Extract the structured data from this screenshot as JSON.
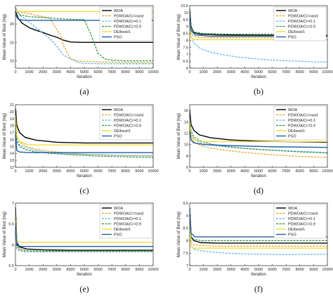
{
  "legend_entries": [
    "WOA",
    "PDWOA/Cr=rand",
    "PDWOA/Cr=0.1",
    "PDWOA/Cr=0.9",
    "DE/best/1",
    "PSO"
  ],
  "series_colors": [
    "#000000",
    "#e6a01e",
    "#5ab4e6",
    "#2e8b3c",
    "#f0dc3c",
    "#1f5fa8"
  ],
  "series_dash": [
    "solid",
    "dash",
    "dash",
    "dash",
    "solid",
    "solid"
  ],
  "chart_data": [
    {
      "type": "line",
      "caption": "(a)",
      "xlabel": "Iteration",
      "ylabel": "Mean Value of Best (log)",
      "xlim": [
        0,
        10000
      ],
      "ylim": [
        8,
        25
      ],
      "xticks": [
        0,
        1000,
        2000,
        3000,
        4000,
        5000,
        6000,
        7000,
        8000,
        9000,
        10000
      ],
      "yticks": [
        10,
        15,
        20
      ],
      "legend": "top-right",
      "grid": false,
      "series": [
        {
          "name": "WOA",
          "x": [
            0,
            200,
            500,
            1000,
            1500,
            2000,
            2500,
            3000,
            3500,
            4000,
            5000,
            6000,
            8000,
            10000
          ],
          "y": [
            23.5,
            21.5,
            20.2,
            19.0,
            18.3,
            17.7,
            17.0,
            16.4,
            15.6,
            15.1,
            15.0,
            15.0,
            15.0,
            15.0
          ]
        },
        {
          "name": "PDWOA/Cr=rand",
          "x": [
            0,
            300,
            1000,
            2000,
            2500,
            3000,
            3300,
            3500,
            3800,
            4000,
            4500,
            5000,
            6000,
            8000,
            10000
          ],
          "y": [
            24.0,
            23.3,
            22.8,
            22.0,
            21.5,
            18.5,
            17.0,
            14.0,
            12.0,
            10.5,
            10.0,
            9.8,
            9.7,
            9.6,
            9.5
          ]
        },
        {
          "name": "PDWOA/Cr=0.1",
          "x": [
            0,
            300,
            1000,
            1500,
            2000,
            2500,
            3000,
            3500,
            4000,
            4200,
            4500,
            5000,
            6000,
            8000,
            10000
          ],
          "y": [
            24.5,
            22.5,
            20.5,
            19.0,
            17.5,
            16.0,
            14.0,
            11.5,
            10.5,
            10.2,
            9.6,
            9.3,
            9.2,
            9.2,
            9.2
          ]
        },
        {
          "name": "PDWOA/Cr=0.9",
          "x": [
            0,
            300,
            1000,
            2000,
            3000,
            4000,
            5000,
            5500,
            6000,
            6500,
            7000,
            8000,
            10000
          ],
          "y": [
            24.0,
            22.5,
            22.0,
            21.8,
            21.5,
            21.3,
            21.2,
            17.0,
            12.0,
            10.5,
            10.2,
            10.0,
            10.0
          ]
        },
        {
          "name": "DE/best/1",
          "x": [
            0,
            200,
            500,
            10000
          ],
          "y": [
            23.8,
            23.4,
            23.4,
            23.4
          ]
        },
        {
          "name": "PSO",
          "x": [
            0,
            200,
            600,
            10000
          ],
          "y": [
            22.5,
            21.3,
            21.0,
            21.0
          ]
        }
      ]
    },
    {
      "type": "line",
      "caption": "(b)",
      "xlabel": "Iteration",
      "ylabel": "Mean Value of Best (log)",
      "xlim": [
        0,
        10000
      ],
      "ylim": [
        6,
        10.5
      ],
      "xticks": [
        0,
        1000,
        2000,
        3000,
        4000,
        5000,
        6000,
        7000,
        8000,
        9000,
        10000
      ],
      "yticks": [
        6,
        6.5,
        7,
        7.5,
        8,
        8.5,
        9,
        9.5,
        10,
        10.5
      ],
      "legend": "top-right",
      "grid": false,
      "series": [
        {
          "name": "WOA",
          "x": [
            0,
            100,
            300,
            800,
            2000,
            4000,
            10000
          ],
          "y": [
            10.2,
            9.0,
            8.55,
            8.45,
            8.4,
            8.38,
            8.35
          ]
        },
        {
          "name": "PDWOA/Cr=rand",
          "x": [
            0,
            100,
            300,
            800,
            2000,
            10000
          ],
          "y": [
            10.0,
            8.5,
            8.3,
            8.2,
            8.2,
            8.2
          ]
        },
        {
          "name": "PDWOA/Cr=0.1",
          "x": [
            0,
            100,
            300,
            800,
            1500,
            2500,
            3500,
            5000,
            6500,
            8000,
            9000,
            10000
          ],
          "y": [
            9.8,
            8.3,
            7.8,
            7.4,
            7.15,
            6.95,
            6.8,
            6.65,
            6.55,
            6.5,
            6.45,
            6.45
          ]
        },
        {
          "name": "PDWOA/Cr=0.9",
          "x": [
            0,
            100,
            300,
            1000,
            3000,
            10000
          ],
          "y": [
            10.3,
            9.0,
            8.6,
            8.5,
            8.45,
            8.45
          ]
        },
        {
          "name": "DE/best/1",
          "x": [
            0,
            100,
            300,
            10000
          ],
          "y": [
            9.6,
            8.2,
            8.05,
            8.05
          ]
        },
        {
          "name": "PSO",
          "x": [
            0,
            100,
            400,
            1500,
            10000
          ],
          "y": [
            9.9,
            8.7,
            8.4,
            8.3,
            8.3
          ]
        }
      ]
    },
    {
      "type": "line",
      "caption": "(c)",
      "xlabel": "Iteration",
      "ylabel": "Mean Value of Best (log)",
      "xlim": [
        0,
        10000
      ],
      "ylim": [
        12,
        21
      ],
      "xticks": [
        0,
        1000,
        2000,
        3000,
        4000,
        5000,
        6000,
        7000,
        8000,
        9000,
        10000
      ],
      "yticks": [
        12,
        13,
        14,
        15,
        16,
        17,
        18,
        19,
        20,
        21
      ],
      "legend": "top-right",
      "grid": false,
      "series": [
        {
          "name": "WOA",
          "x": [
            0,
            100,
            300,
            700,
            1500,
            3000,
            5000,
            7000,
            10000
          ],
          "y": [
            20.5,
            18.0,
            17.0,
            16.3,
            15.9,
            15.6,
            15.5,
            15.5,
            15.5
          ]
        },
        {
          "name": "PDWOA/Cr=rand",
          "x": [
            0,
            100,
            300,
            800,
            1500,
            2500,
            4000,
            6000,
            8000,
            10000
          ],
          "y": [
            19.0,
            16.5,
            15.6,
            15.0,
            14.6,
            14.3,
            14.0,
            13.8,
            13.7,
            13.7
          ]
        },
        {
          "name": "PDWOA/Cr=0.1",
          "x": [
            0,
            100,
            300,
            800,
            1500,
            2500,
            4000,
            6000,
            8000,
            10000
          ],
          "y": [
            18.5,
            16.0,
            15.2,
            14.8,
            14.4,
            14.1,
            13.9,
            13.8,
            13.7,
            13.6
          ]
        },
        {
          "name": "PDWOA/Cr=0.9",
          "x": [
            0,
            100,
            300,
            800,
            1500,
            2500,
            4000,
            6000,
            8000,
            10000
          ],
          "y": [
            18.0,
            15.6,
            15.0,
            14.5,
            14.2,
            14.0,
            13.8,
            13.6,
            13.5,
            13.4
          ]
        },
        {
          "name": "DE/best/1",
          "x": [
            0,
            100,
            300,
            800,
            1500,
            10000
          ],
          "y": [
            19.5,
            16.5,
            15.7,
            15.3,
            15.2,
            15.2
          ]
        },
        {
          "name": "PSO",
          "x": [
            0,
            100,
            300,
            1000,
            10000
          ],
          "y": [
            17.0,
            14.4,
            14.2,
            14.1,
            14.1
          ]
        }
      ]
    },
    {
      "type": "line",
      "caption": "(d)",
      "xlabel": "Iteration",
      "ylabel": "Mean Value of Best (log)",
      "xlim": [
        0,
        10000
      ],
      "ylim": [
        6,
        17
      ],
      "xticks": [
        0,
        1000,
        2000,
        3000,
        4000,
        5000,
        6000,
        7000,
        8000,
        9000,
        10000
      ],
      "yticks": [
        6,
        8,
        10,
        12,
        14,
        16
      ],
      "legend": "top-right",
      "grid": false,
      "series": [
        {
          "name": "WOA",
          "x": [
            0,
            100,
            300,
            700,
            1500,
            3000,
            5000,
            7000,
            10000
          ],
          "y": [
            16.0,
            13.5,
            12.5,
            11.7,
            11.2,
            10.8,
            10.6,
            10.5,
            10.4
          ]
        },
        {
          "name": "PDWOA/Cr=rand",
          "x": [
            0,
            100,
            300,
            800,
            1500,
            2500,
            4000,
            6000,
            8000,
            10000
          ],
          "y": [
            14.5,
            11.5,
            10.5,
            9.8,
            9.4,
            9.0,
            8.6,
            8.2,
            7.9,
            7.7
          ]
        },
        {
          "name": "PDWOA/Cr=0.1",
          "x": [
            0,
            100,
            300,
            800,
            1500,
            2500,
            4000,
            6000,
            8000,
            10000
          ],
          "y": [
            14.0,
            11.8,
            10.9,
            10.3,
            9.9,
            9.6,
            9.3,
            9.0,
            8.8,
            8.6
          ]
        },
        {
          "name": "PDWOA/Cr=0.9",
          "x": [
            0,
            100,
            300,
            800,
            1500,
            2500,
            4000,
            6000,
            8000,
            10000
          ],
          "y": [
            15.0,
            12.5,
            11.3,
            10.6,
            10.1,
            9.7,
            9.3,
            9.0,
            8.7,
            8.5
          ]
        },
        {
          "name": "DE/best/1",
          "x": [
            0,
            100,
            300,
            800,
            10000
          ],
          "y": [
            14.5,
            11.5,
            10.8,
            10.5,
            10.5
          ]
        },
        {
          "name": "PSO",
          "x": [
            0,
            100,
            300,
            1000,
            3000,
            6000,
            10000
          ],
          "y": [
            12.5,
            10.8,
            10.3,
            10.0,
            9.8,
            9.6,
            9.5
          ]
        }
      ]
    },
    {
      "type": "line",
      "caption": "(e)",
      "xlabel": "Iteration",
      "ylabel": "Mean Value of Best (log)",
      "xlim": [
        0,
        10000
      ],
      "ylim": [
        5.5,
        7
      ],
      "xticks": [
        0,
        1000,
        2000,
        3000,
        4000,
        5000,
        6000,
        7000,
        8000,
        9000,
        10000
      ],
      "yticks": [
        5.5,
        6,
        6.5,
        7
      ],
      "legend": "top-right",
      "grid": false,
      "series": [
        {
          "name": "WOA",
          "x": [
            0,
            100,
            300,
            800,
            2000,
            4000,
            10000
          ],
          "y": [
            6.9,
            6.05,
            5.95,
            5.9,
            5.88,
            5.87,
            5.87
          ]
        },
        {
          "name": "PDWOA/Cr=rand",
          "x": [
            0,
            100,
            300,
            800,
            2000,
            10000
          ],
          "y": [
            6.8,
            5.95,
            5.87,
            5.84,
            5.84,
            5.84
          ]
        },
        {
          "name": "PDWOA/Cr=0.1",
          "x": [
            0,
            100,
            300,
            800,
            2000,
            10000
          ],
          "y": [
            6.7,
            5.9,
            5.85,
            5.83,
            5.83,
            5.83
          ]
        },
        {
          "name": "PDWOA/Cr=0.9",
          "x": [
            0,
            100,
            300,
            800,
            2000,
            10000
          ],
          "y": [
            6.85,
            6.0,
            5.9,
            5.86,
            5.85,
            5.85
          ]
        },
        {
          "name": "DE/best/1",
          "x": [
            0,
            100,
            400,
            10000
          ],
          "y": [
            6.6,
            6.08,
            6.06,
            6.06
          ]
        },
        {
          "name": "PSO",
          "x": [
            0,
            100,
            400,
            10000
          ],
          "y": [
            6.5,
            5.98,
            5.96,
            5.96
          ]
        }
      ]
    },
    {
      "type": "line",
      "caption": "(f)",
      "xlabel": "Iteration",
      "ylabel": "Mean Value of Best (log)",
      "xlim": [
        0,
        10000
      ],
      "ylim": [
        7,
        9.5
      ],
      "xticks": [
        0,
        1000,
        2000,
        3000,
        4000,
        5000,
        6000,
        7000,
        8000,
        9000,
        10000
      ],
      "yticks": [
        7,
        7.5,
        8,
        8.5,
        9,
        9.5
      ],
      "legend": "top-right",
      "grid": false,
      "series": [
        {
          "name": "WOA",
          "x": [
            0,
            100,
            300,
            800,
            2000,
            10000
          ],
          "y": [
            9.3,
            8.15,
            8.0,
            7.92,
            7.9,
            7.9
          ]
        },
        {
          "name": "PDWOA/Cr=rand",
          "x": [
            0,
            100,
            300,
            800,
            2000,
            10000
          ],
          "y": [
            9.1,
            7.95,
            7.85,
            7.8,
            7.78,
            7.78
          ]
        },
        {
          "name": "PDWOA/Cr=0.1",
          "x": [
            0,
            100,
            300,
            800,
            1500,
            2500,
            4000,
            6000,
            8000,
            10000
          ],
          "y": [
            9.0,
            7.8,
            7.65,
            7.6,
            7.55,
            7.5,
            7.47,
            7.45,
            7.45,
            7.45
          ]
        },
        {
          "name": "PDWOA/Cr=0.9",
          "x": [
            0,
            100,
            300,
            800,
            2000,
            10000
          ],
          "y": [
            9.2,
            8.15,
            8.05,
            8.0,
            8.0,
            8.0
          ]
        },
        {
          "name": "DE/best/1",
          "x": [
            0,
            100,
            300,
            10000
          ],
          "y": [
            9.0,
            7.75,
            7.7,
            7.7
          ]
        },
        {
          "name": "PSO",
          "x": [
            0,
            100,
            400,
            10000
          ],
          "y": [
            9.3,
            8.3,
            8.15,
            8.15
          ]
        }
      ]
    }
  ]
}
